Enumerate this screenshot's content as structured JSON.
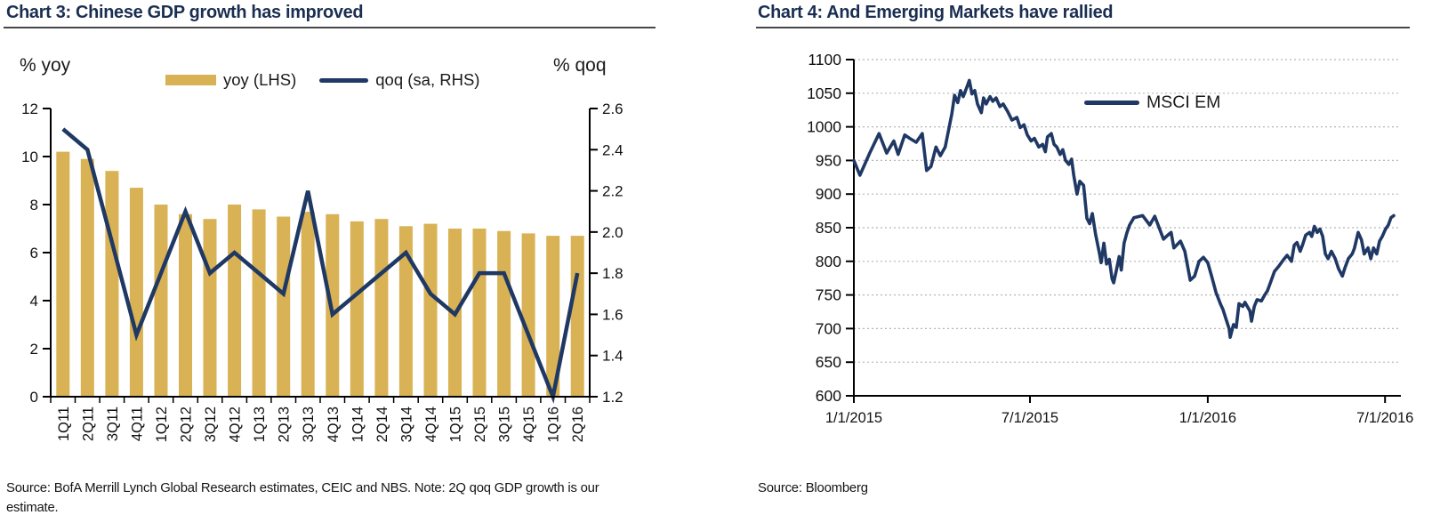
{
  "chart3": {
    "title": "Chart 3: Chinese GDP growth has improved",
    "left_axis_label": "% yoy",
    "right_axis_label": "% qoq",
    "legend": {
      "bar_label": "yoy (LHS)",
      "line_label": "qoq (sa, RHS)"
    },
    "source_line1": "Source: BofA Merrill Lynch Global Research estimates, CEIC and NBS. Note: 2Q qoq GDP growth is our",
    "source_line2": "estimate.",
    "colors": {
      "bar": "#d8b254",
      "line": "#1f3864",
      "axis": "#000000"
    },
    "chart_data": {
      "type": "bar",
      "subtype": "combo-bar-line",
      "categories": [
        "1Q11",
        "2Q11",
        "3Q11",
        "4Q11",
        "1Q12",
        "2Q12",
        "3Q12",
        "4Q12",
        "1Q13",
        "2Q13",
        "3Q13",
        "4Q13",
        "1Q14",
        "2Q14",
        "3Q14",
        "4Q14",
        "1Q15",
        "2Q15",
        "3Q15",
        "4Q15",
        "1Q16",
        "2Q16"
      ],
      "series": [
        {
          "name": "yoy (LHS)",
          "type": "bar",
          "axis": "left",
          "color": "#d8b254",
          "values": [
            10.2,
            9.9,
            9.4,
            8.7,
            8.0,
            7.6,
            7.4,
            8.0,
            7.8,
            7.5,
            7.7,
            7.6,
            7.3,
            7.4,
            7.1,
            7.2,
            7.0,
            7.0,
            6.9,
            6.8,
            6.7,
            6.7
          ]
        },
        {
          "name": "qoq (sa, RHS)",
          "type": "line",
          "axis": "right",
          "color": "#1f3864",
          "values": [
            2.5,
            2.4,
            1.95,
            1.5,
            1.8,
            2.1,
            1.8,
            1.9,
            1.8,
            1.7,
            2.2,
            1.6,
            1.7,
            1.8,
            1.9,
            1.7,
            1.6,
            1.8,
            1.8,
            1.5,
            1.2,
            1.8
          ]
        }
      ],
      "left_axis": {
        "title": "% yoy",
        "min": 0,
        "max": 12,
        "step": 2
      },
      "right_axis": {
        "title": "% qoq",
        "min": 1.2,
        "max": 2.6,
        "step": 0.2
      },
      "grid": false,
      "x_labels_rotated_90": true
    }
  },
  "chart4": {
    "title": "Chart 4: And Emerging Markets have rallied",
    "source_line1": "Source: Bloomberg",
    "colors": {
      "line": "#1f3864",
      "grid": "#b5b5b5",
      "axis": "#000000"
    },
    "chart_data": {
      "type": "line",
      "legend": [
        "MSCI EM"
      ],
      "legend_position": "inside-upper-middle",
      "y_axis": {
        "min": 600,
        "max": 1100,
        "step": 50
      },
      "x_axis": {
        "ticks": [
          {
            "label": "1/1/2015",
            "f": 0.0
          },
          {
            "label": "7/1/2015",
            "f": 0.322
          },
          {
            "label": "1/1/2016",
            "f": 0.647
          },
          {
            "label": "7/1/2016",
            "f": 0.971
          }
        ]
      },
      "grid": "dotted-horizontal",
      "series": [
        {
          "name": "MSCI EM",
          "color": "#1f3864",
          "points": [
            [
              0.0,
              950
            ],
            [
              0.011,
              928
            ],
            [
              0.029,
              961
            ],
            [
              0.046,
              990
            ],
            [
              0.06,
              961
            ],
            [
              0.073,
              979
            ],
            [
              0.081,
              959
            ],
            [
              0.093,
              988
            ],
            [
              0.102,
              983
            ],
            [
              0.114,
              977
            ],
            [
              0.125,
              990
            ],
            [
              0.133,
              935
            ],
            [
              0.141,
              941
            ],
            [
              0.15,
              970
            ],
            [
              0.158,
              957
            ],
            [
              0.167,
              970
            ],
            [
              0.179,
              1019
            ],
            [
              0.184,
              1047
            ],
            [
              0.19,
              1036
            ],
            [
              0.195,
              1054
            ],
            [
              0.2,
              1045
            ],
            [
              0.207,
              1060
            ],
            [
              0.211,
              1069
            ],
            [
              0.216,
              1049
            ],
            [
              0.221,
              1054
            ],
            [
              0.226,
              1034
            ],
            [
              0.233,
              1021
            ],
            [
              0.237,
              1043
            ],
            [
              0.242,
              1034
            ],
            [
              0.249,
              1045
            ],
            [
              0.254,
              1038
            ],
            [
              0.26,
              1043
            ],
            [
              0.267,
              1030
            ],
            [
              0.273,
              1034
            ],
            [
              0.281,
              1023
            ],
            [
              0.289,
              1010
            ],
            [
              0.298,
              1014
            ],
            [
              0.304,
              999
            ],
            [
              0.311,
              1003
            ],
            [
              0.317,
              988
            ],
            [
              0.324,
              979
            ],
            [
              0.33,
              983
            ],
            [
              0.338,
              970
            ],
            [
              0.345,
              974
            ],
            [
              0.35,
              963
            ],
            [
              0.354,
              985
            ],
            [
              0.361,
              990
            ],
            [
              0.366,
              974
            ],
            [
              0.371,
              970
            ],
            [
              0.377,
              959
            ],
            [
              0.382,
              966
            ],
            [
              0.387,
              950
            ],
            [
              0.393,
              944
            ],
            [
              0.398,
              952
            ],
            [
              0.402,
              928
            ],
            [
              0.408,
              900
            ],
            [
              0.413,
              919
            ],
            [
              0.42,
              913
            ],
            [
              0.426,
              864
            ],
            [
              0.431,
              856
            ],
            [
              0.436,
              871
            ],
            [
              0.442,
              840
            ],
            [
              0.449,
              812
            ],
            [
              0.452,
              798
            ],
            [
              0.457,
              827
            ],
            [
              0.462,
              796
            ],
            [
              0.467,
              803
            ],
            [
              0.472,
              774
            ],
            [
              0.475,
              768
            ],
            [
              0.48,
              787
            ],
            [
              0.485,
              807
            ],
            [
              0.489,
              787
            ],
            [
              0.494,
              827
            ],
            [
              0.499,
              842
            ],
            [
              0.504,
              854
            ],
            [
              0.512,
              865
            ],
            [
              0.528,
              868
            ],
            [
              0.541,
              854
            ],
            [
              0.55,
              867
            ],
            [
              0.558,
              850
            ],
            [
              0.566,
              833
            ],
            [
              0.574,
              839
            ],
            [
              0.58,
              843
            ],
            [
              0.585,
              820
            ],
            [
              0.597,
              830
            ],
            [
              0.605,
              815
            ],
            [
              0.615,
              772
            ],
            [
              0.623,
              778
            ],
            [
              0.631,
              800
            ],
            [
              0.639,
              806
            ],
            [
              0.647,
              798
            ],
            [
              0.654,
              778
            ],
            [
              0.662,
              754
            ],
            [
              0.67,
              737
            ],
            [
              0.675,
              728
            ],
            [
              0.68,
              715
            ],
            [
              0.686,
              700
            ],
            [
              0.688,
              687
            ],
            [
              0.694,
              706
            ],
            [
              0.699,
              702
            ],
            [
              0.704,
              737
            ],
            [
              0.711,
              733
            ],
            [
              0.715,
              739
            ],
            [
              0.724,
              726
            ],
            [
              0.727,
              711
            ],
            [
              0.732,
              733
            ],
            [
              0.737,
              743
            ],
            [
              0.745,
              741
            ],
            [
              0.751,
              750
            ],
            [
              0.756,
              756
            ],
            [
              0.761,
              767
            ],
            [
              0.769,
              785
            ],
            [
              0.777,
              793
            ],
            [
              0.785,
              802
            ],
            [
              0.792,
              809
            ],
            [
              0.8,
              800
            ],
            [
              0.805,
              824
            ],
            [
              0.81,
              828
            ],
            [
              0.816,
              815
            ],
            [
              0.821,
              826
            ],
            [
              0.826,
              839
            ],
            [
              0.833,
              843
            ],
            [
              0.837,
              837
            ],
            [
              0.842,
              852
            ],
            [
              0.847,
              843
            ],
            [
              0.852,
              848
            ],
            [
              0.857,
              837
            ],
            [
              0.862,
              811
            ],
            [
              0.867,
              804
            ],
            [
              0.873,
              815
            ],
            [
              0.88,
              804
            ],
            [
              0.886,
              789
            ],
            [
              0.893,
              778
            ],
            [
              0.898,
              791
            ],
            [
              0.904,
              804
            ],
            [
              0.911,
              811
            ],
            [
              0.915,
              819
            ],
            [
              0.922,
              843
            ],
            [
              0.928,
              832
            ],
            [
              0.933,
              811
            ],
            [
              0.94,
              820
            ],
            [
              0.945,
              804
            ],
            [
              0.95,
              820
            ],
            [
              0.956,
              811
            ],
            [
              0.961,
              830
            ],
            [
              0.966,
              837
            ],
            [
              0.972,
              848
            ],
            [
              0.977,
              854
            ],
            [
              0.982,
              865
            ],
            [
              0.987,
              868
            ]
          ]
        }
      ]
    }
  }
}
